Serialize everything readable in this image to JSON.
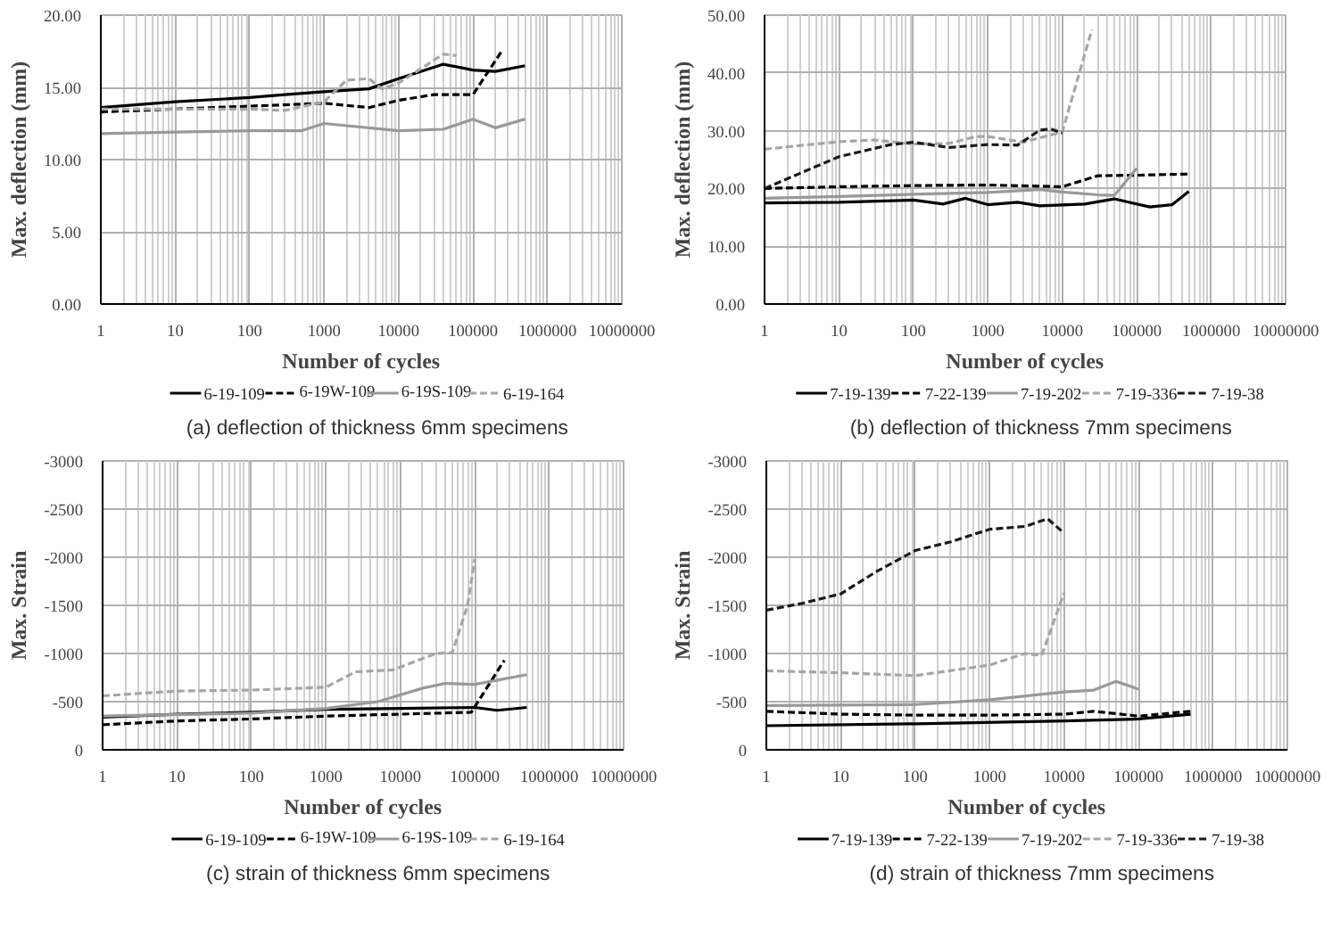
{
  "chart_data": [
    {
      "type": "line",
      "title": "(a) deflection of thickness 6mm specimens",
      "xlabel": "Number of cycles",
      "ylabel": "Max. deflection (mm)",
      "log": "x",
      "grid": true,
      "legend": "bottom",
      "xlim": [
        1,
        10000000
      ],
      "xticks": [
        1,
        10,
        100,
        1000,
        10000,
        100000,
        1000000,
        10000000
      ],
      "ylim": [
        0,
        20
      ],
      "yticks": [
        {
          "value": 0,
          "label": "0.00"
        },
        {
          "value": 5,
          "label": "5.00"
        },
        {
          "value": 10,
          "label": "10.00"
        },
        {
          "value": 15,
          "label": "15.00"
        },
        {
          "value": 20,
          "label": "20.00"
        }
      ],
      "series": [
        {
          "name": "6-19-109",
          "color": "#000000",
          "line_style": "solid",
          "x": [
            1,
            10,
            100,
            300,
            1000,
            4000,
            10000,
            40000,
            100000,
            200000,
            500000
          ],
          "values": [
            13.6,
            14.0,
            14.3,
            14.5,
            14.7,
            14.9,
            15.6,
            16.6,
            16.2,
            16.1,
            16.5
          ]
        },
        {
          "name": "6-19W-109",
          "color": "#000000",
          "line_style": "dashed",
          "x": [
            1,
            10,
            100,
            1000,
            4000,
            10000,
            30000,
            100000,
            250000
          ],
          "values": [
            13.3,
            13.5,
            13.7,
            13.9,
            13.6,
            14.1,
            14.5,
            14.5,
            17.6
          ]
        },
        {
          "name": "6-19S-109",
          "color": "#999999",
          "line_style": "solid",
          "x": [
            1,
            10,
            100,
            500,
            1000,
            10000,
            40000,
            100000,
            200000,
            500000
          ],
          "values": [
            11.8,
            11.9,
            12.0,
            12.0,
            12.5,
            12.0,
            12.1,
            12.8,
            12.2,
            12.8
          ]
        },
        {
          "name": "6-19-164",
          "color": "#a6a6a6",
          "line_style": "dashed",
          "x": [
            1,
            10,
            100,
            300,
            1000,
            2000,
            4000,
            6000,
            10000,
            40000,
            60000
          ],
          "values": [
            13.5,
            13.5,
            13.5,
            13.4,
            14.0,
            15.5,
            15.6,
            14.9,
            15.3,
            17.3,
            17.2
          ]
        }
      ]
    },
    {
      "type": "line",
      "title": "(b) deflection of thickness 7mm specimens",
      "xlabel": "Number of cycles",
      "ylabel": "Max. deflection (mm)",
      "log": "x",
      "grid": true,
      "legend": "bottom",
      "xlim": [
        1,
        10000000
      ],
      "xticks": [
        1,
        10,
        100,
        1000,
        10000,
        100000,
        1000000,
        10000000
      ],
      "ylim": [
        0,
        50
      ],
      "yticks": [
        {
          "value": 0,
          "label": "0.00"
        },
        {
          "value": 10,
          "label": "10.00"
        },
        {
          "value": 20,
          "label": "20.00"
        },
        {
          "value": 30,
          "label": "30.00"
        },
        {
          "value": 40,
          "label": "40.00"
        },
        {
          "value": 50,
          "label": "50.00"
        }
      ],
      "series": [
        {
          "name": "7-19-139",
          "color": "#000000",
          "line_style": "solid",
          "x": [
            1,
            10,
            100,
            250,
            500,
            1000,
            2500,
            5000,
            20000,
            50000,
            150000,
            300000,
            500000
          ],
          "values": [
            17.5,
            17.6,
            18.0,
            17.3,
            18.3,
            17.2,
            17.6,
            17.0,
            17.3,
            18.2,
            16.8,
            17.2,
            19.5
          ]
        },
        {
          "name": "7-22-139",
          "color": "#000000",
          "line_style": "dashed",
          "x": [
            1,
            10,
            100,
            1000,
            10000,
            30000,
            100000,
            500000
          ],
          "values": [
            20.0,
            20.3,
            20.5,
            20.6,
            20.3,
            22.2,
            22.3,
            22.5
          ]
        },
        {
          "name": "7-19-202",
          "color": "#999999",
          "line_style": "solid",
          "x": [
            1,
            10,
            100,
            1000,
            5000,
            10000,
            30000,
            50000,
            100000
          ],
          "values": [
            18.3,
            18.6,
            19.0,
            19.3,
            19.8,
            19.4,
            18.9,
            18.8,
            23.5
          ]
        },
        {
          "name": "7-19-336",
          "color": "#a6a6a6",
          "line_style": "dashed",
          "x": [
            1,
            10,
            30,
            100,
            300,
            700,
            1000,
            3000,
            10000,
            25000
          ],
          "values": [
            26.8,
            28.1,
            28.4,
            27.7,
            27.8,
            29.0,
            29.0,
            28.0,
            29.8,
            47.5
          ]
        },
        {
          "name": "7-19-38",
          "color": "#1a1a1a",
          "line_style": "dashed",
          "x": [
            1,
            10,
            50,
            100,
            300,
            1000,
            2500,
            5000,
            7000,
            10000
          ],
          "values": [
            20.0,
            25.5,
            27.6,
            28.0,
            27.1,
            27.6,
            27.5,
            30.1,
            30.3,
            29.6
          ]
        }
      ]
    },
    {
      "type": "line",
      "title": "(c) strain of thickness 6mm specimens",
      "xlabel": "Number of cycles",
      "ylabel": "Max. Strain",
      "log": "x",
      "grid": true,
      "legend": "bottom",
      "xlim": [
        1,
        10000000
      ],
      "xticks": [
        1,
        10,
        100,
        1000,
        10000,
        100000,
        1000000,
        10000000
      ],
      "ylim": [
        0,
        -3000
      ],
      "yticks": [
        0,
        -500,
        -1000,
        -1500,
        -2000,
        -2500,
        -3000
      ],
      "series": [
        {
          "name": "6-19-109",
          "color": "#000000",
          "line_style": "solid",
          "x": [
            1,
            10,
            100,
            1000,
            10000,
            100000,
            200000,
            500000
          ],
          "values": [
            -340,
            -370,
            -390,
            -420,
            -430,
            -440,
            -410,
            -440
          ]
        },
        {
          "name": "6-19W-109",
          "color": "#000000",
          "line_style": "dashed",
          "x": [
            1,
            10,
            100,
            1000,
            10000,
            90000,
            250000
          ],
          "values": [
            -260,
            -300,
            -320,
            -350,
            -370,
            -390,
            -930
          ]
        },
        {
          "name": "6-19S-109",
          "color": "#999999",
          "line_style": "solid",
          "x": [
            1,
            100,
            1000,
            5000,
            20000,
            40000,
            100000,
            500000
          ],
          "values": [
            -350,
            -380,
            -430,
            -500,
            -640,
            -690,
            -680,
            -780
          ]
        },
        {
          "name": "6-19-164",
          "color": "#a6a6a6",
          "line_style": "dashed",
          "x": [
            1,
            10,
            100,
            1000,
            2500,
            8000,
            30000,
            50000,
            80000,
            100000
          ],
          "values": [
            -560,
            -610,
            -620,
            -650,
            -810,
            -830,
            -1000,
            -1010,
            -1500,
            -1980
          ]
        }
      ]
    },
    {
      "type": "line",
      "title": "(d) strain of thickness 7mm specimens",
      "xlabel": "Number of cycles",
      "ylabel": "Max. Strain",
      "log": "x",
      "grid": true,
      "legend": "bottom",
      "xlim": [
        1,
        10000000
      ],
      "xticks": [
        1,
        10,
        100,
        1000,
        10000,
        100000,
        1000000,
        10000000
      ],
      "ylim": [
        0,
        -3000
      ],
      "yticks": [
        0,
        -500,
        -1000,
        -1500,
        -2000,
        -2500,
        -3000
      ],
      "series": [
        {
          "name": "7-19-139",
          "color": "#000000",
          "line_style": "solid",
          "x": [
            1,
            100,
            10000,
            100000,
            500000
          ],
          "values": [
            -250,
            -270,
            -300,
            -320,
            -370
          ]
        },
        {
          "name": "7-22-139",
          "color": "#000000",
          "line_style": "dashed",
          "x": [
            1,
            10,
            100,
            1000,
            10000,
            25000,
            100000,
            500000
          ],
          "values": [
            -400,
            -370,
            -360,
            -360,
            -370,
            -400,
            -350,
            -400
          ]
        },
        {
          "name": "7-19-202",
          "color": "#999999",
          "line_style": "solid",
          "x": [
            1,
            100,
            1000,
            10000,
            25000,
            50000,
            100000
          ],
          "values": [
            -460,
            -470,
            -520,
            -600,
            -620,
            -710,
            -630
          ]
        },
        {
          "name": "7-19-336",
          "color": "#a6a6a6",
          "line_style": "dashed",
          "x": [
            1,
            10,
            100,
            1000,
            3000,
            5000,
            10000
          ],
          "values": [
            -820,
            -800,
            -770,
            -880,
            -1000,
            -980,
            -1630
          ]
        },
        {
          "name": "7-19-38",
          "color": "#1a1a1a",
          "line_style": "dashed",
          "x": [
            1,
            3,
            10,
            30,
            100,
            300,
            1000,
            3000,
            6000,
            10000
          ],
          "values": [
            -1450,
            -1520,
            -1620,
            -1850,
            -2070,
            -2160,
            -2290,
            -2320,
            -2400,
            -2250
          ]
        }
      ]
    }
  ]
}
